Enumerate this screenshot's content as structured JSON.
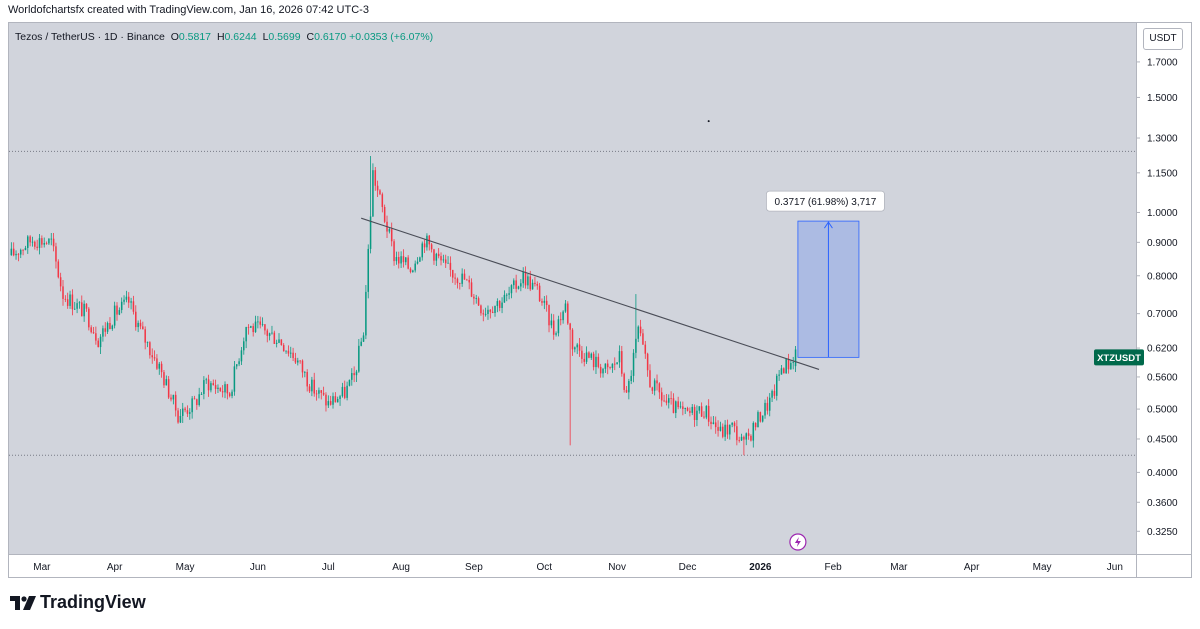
{
  "credit": "Worldofchartsfx created with TradingView.com, Jan 16, 2026 07:42 UTC-3",
  "legend": {
    "symbol": "Tezos / TetherUS · 1D · Binance",
    "o_label": "O",
    "o": "0.5817",
    "h_label": "H",
    "h": "0.6244",
    "l_label": "L",
    "l": "0.5699",
    "c_label": "C",
    "c": "0.6170",
    "change": "+0.0353 (+6.07%)"
  },
  "currency": "USDT",
  "price_tag": {
    "label": "XTZUSDT",
    "value": 0.6,
    "color": "#00694b"
  },
  "measure": {
    "label": "0.3717 (61.98%) 3,717",
    "from": 0.6,
    "to": 0.97,
    "color": "#2962ff"
  },
  "footer_brand": "TradingView",
  "chart_data": {
    "type": "candlestick",
    "title": "",
    "symbol": "XTZUSDT",
    "scale": "log",
    "ylim": [
      0.3,
      1.95
    ],
    "y_ticks": [
      "1.7000",
      "1.5000",
      "1.3000",
      "1.1500",
      "1.0000",
      "0.9000",
      "0.8000",
      "0.7000",
      "0.6200",
      "0.5600",
      "0.5000",
      "0.4500",
      "0.4000",
      "0.3600",
      "0.3250"
    ],
    "x_ticks": [
      "Mar",
      "Apr",
      "May",
      "Jun",
      "Jul",
      "Aug",
      "Sep",
      "Oct",
      "Nov",
      "Dec",
      "2026",
      "Feb",
      "Mar",
      "Apr",
      "May",
      "Jun"
    ],
    "x_range": [
      "2025-02-15",
      "2026-06-10"
    ],
    "up_color": "#089981",
    "down_color": "#f23645",
    "horizontal_levels": [
      1.24,
      0.425
    ],
    "trendline": {
      "from": [
        "2025-07-15",
        0.98
      ],
      "to": [
        "2026-01-26",
        0.575
      ]
    },
    "last": {
      "date": "2026-01-16",
      "open": 0.5817,
      "high": 0.6244,
      "low": 0.5699,
      "close": 0.617
    },
    "anchors": [
      [
        "2025-02-16",
        0.86
      ],
      [
        "2025-02-25",
        0.91
      ],
      [
        "2025-03-05",
        0.9
      ],
      [
        "2025-03-10",
        0.75
      ],
      [
        "2025-03-20",
        0.7
      ],
      [
        "2025-03-25",
        0.64
      ],
      [
        "2025-04-01",
        0.7
      ],
      [
        "2025-04-07",
        0.73
      ],
      [
        "2025-04-12",
        0.66
      ],
      [
        "2025-04-20",
        0.58
      ],
      [
        "2025-04-28",
        0.49
      ],
      [
        "2025-05-05",
        0.51
      ],
      [
        "2025-05-10",
        0.55
      ],
      [
        "2025-05-20",
        0.53
      ],
      [
        "2025-05-27",
        0.67
      ],
      [
        "2025-06-03",
        0.66
      ],
      [
        "2025-06-10",
        0.64
      ],
      [
        "2025-06-17",
        0.6
      ],
      [
        "2025-06-24",
        0.54
      ],
      [
        "2025-07-01",
        0.51
      ],
      [
        "2025-07-08",
        0.53
      ],
      [
        "2025-07-12",
        0.56
      ],
      [
        "2025-07-16",
        0.66
      ],
      [
        "2025-07-20",
        1.15
      ],
      [
        "2025-07-25",
        0.98
      ],
      [
        "2025-07-29",
        0.86
      ],
      [
        "2025-08-05",
        0.82
      ],
      [
        "2025-08-11",
        0.91
      ],
      [
        "2025-08-20",
        0.82
      ],
      [
        "2025-08-28",
        0.79
      ],
      [
        "2025-09-05",
        0.71
      ],
      [
        "2025-09-15",
        0.74
      ],
      [
        "2025-09-22",
        0.8
      ],
      [
        "2025-09-28",
        0.76
      ],
      [
        "2025-10-05",
        0.66
      ],
      [
        "2025-10-10",
        0.72
      ],
      [
        "2025-10-13",
        0.63
      ],
      [
        "2025-10-20",
        0.6
      ],
      [
        "2025-10-28",
        0.57
      ],
      [
        "2025-11-02",
        0.6
      ],
      [
        "2025-11-05",
        0.52
      ],
      [
        "2025-11-10",
        0.66
      ],
      [
        "2025-11-15",
        0.55
      ],
      [
        "2025-11-22",
        0.51
      ],
      [
        "2025-11-30",
        0.49
      ],
      [
        "2025-12-08",
        0.5
      ],
      [
        "2025-12-15",
        0.46
      ],
      [
        "2025-12-20",
        0.47
      ],
      [
        "2025-12-25",
        0.44
      ],
      [
        "2026-01-01",
        0.49
      ],
      [
        "2026-01-06",
        0.52
      ],
      [
        "2026-01-10",
        0.58
      ],
      [
        "2026-01-14",
        0.59
      ],
      [
        "2026-01-16",
        0.617
      ]
    ],
    "wicks": [
      [
        "2025-10-12",
        0.44
      ],
      [
        "2025-07-19",
        1.22
      ],
      [
        "2025-11-09",
        0.75
      ],
      [
        "2025-12-25",
        0.425
      ]
    ]
  }
}
